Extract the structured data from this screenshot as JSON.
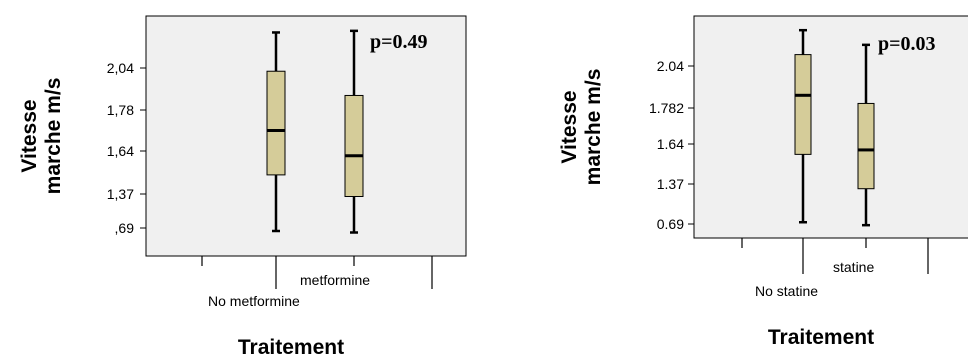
{
  "chart_data": [
    {
      "type": "boxplot",
      "ylabel_line1": "Vitesse",
      "ylabel_line2": "marche m/s",
      "xlabel": "Traitement",
      "annotation": "p=0.49",
      "y_ticks": [
        {
          "value": 0.69,
          "label": ",69"
        },
        {
          "value": 1.37,
          "label": "1,37"
        },
        {
          "value": 1.64,
          "label": "1,64"
        },
        {
          "value": 1.78,
          "label": "1,78"
        },
        {
          "value": 2.04,
          "label": "2,04"
        }
      ],
      "categories": [
        "No metformine",
        "metformine"
      ],
      "boxes": [
        {
          "whisker_low": 0.63,
          "q1": 1.49,
          "median": 1.71,
          "q3": 2.02,
          "whisker_high": 2.26
        },
        {
          "whisker_low": 0.6,
          "q1": 1.32,
          "median": 1.61,
          "q3": 1.87,
          "whisker_high": 2.27
        }
      ],
      "box_color": "#d5cc99"
    },
    {
      "type": "boxplot",
      "ylabel_line1": "Vitesse",
      "ylabel_line2": "marche m/s",
      "xlabel": "Traitement",
      "annotation": "p=0.03",
      "y_ticks": [
        {
          "value": 0.69,
          "label": "0.69"
        },
        {
          "value": 1.37,
          "label": "1.37"
        },
        {
          "value": 1.64,
          "label": "1.64"
        },
        {
          "value": 1.782,
          "label": "1.782"
        },
        {
          "value": 2.04,
          "label": "2.04"
        }
      ],
      "categories": [
        "No statine",
        "statine"
      ],
      "boxes": [
        {
          "whisker_low": 0.72,
          "q1": 1.57,
          "median": 1.86,
          "q3": 2.11,
          "whisker_high": 2.26
        },
        {
          "whisker_low": 0.67,
          "q1": 1.29,
          "median": 1.6,
          "q3": 1.81,
          "whisker_high": 2.17
        }
      ],
      "box_color": "#d5cc99"
    }
  ]
}
